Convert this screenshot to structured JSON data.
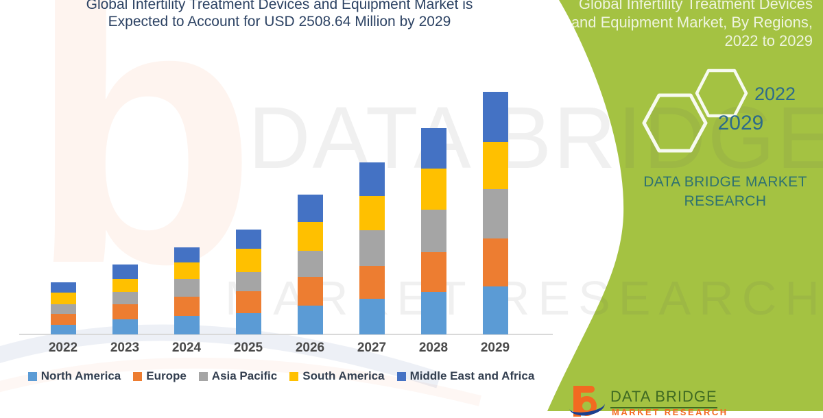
{
  "title": {
    "line1": "Global Infertility Treatment Devices and Equipment Market is",
    "line2": "Expected to Account for USD 2508.64 Million by 2029"
  },
  "side_panel": {
    "heading_lines": [
      "Global Infertility Treatment Devices",
      "and Equipment Market, By Regions,",
      "2022 to 2029"
    ],
    "hexagons": [
      {
        "label": "2022"
      },
      {
        "label": "2029"
      }
    ],
    "brand": {
      "line1": "DATA BRIDGE MARKET",
      "line2": "RESEARCH"
    }
  },
  "watermark": {
    "line1": "DATA BRIDGE",
    "line2": "MARKET RESEARCH",
    "brand_letter": "b"
  },
  "footer_logo": {
    "name": "DATA BRIDGE",
    "subtext": "MARKET RESEARCH"
  },
  "colors": {
    "panel_green": "#a4c242",
    "title_navy": "#2c4263",
    "heading_text": "#eef4de",
    "hex_text": "#2d6b8a",
    "brand_teal": "#2e7170",
    "axis_line": "#d9d9d9",
    "xlabel_gray": "#4a4a4a",
    "legend_text": "#333f50",
    "logo_orange": "#f26a21",
    "logo_blue": "#1b3f8f",
    "logo_green": "#3f6a22",
    "hexagon_border": "#f7faf0"
  },
  "chart_data": {
    "type": "bar",
    "stacked": true,
    "title": "Global Infertility Treatment Devices and Equipment Market is Expected to Account for USD 2508.64 Million by 2029",
    "xlabel": "",
    "ylabel": "",
    "unit": "USD Million",
    "axis_values_hidden": true,
    "values_estimated_from_bar_heights": true,
    "total_2029": 2508.64,
    "ylim": [
      0,
      2600
    ],
    "legend_position": "bottom",
    "grid": false,
    "categories": [
      "2022",
      "2023",
      "2024",
      "2025",
      "2026",
      "2027",
      "2028",
      "2029"
    ],
    "series": [
      {
        "name": "North America",
        "color": "#5B9BD5",
        "values": [
          99.2,
          155.9,
          191.3,
          219.7,
          297.7,
          368.5,
          439.4,
          496.1
        ]
      },
      {
        "name": "Europe",
        "color": "#ED7D31",
        "values": [
          113.4,
          155.9,
          198.4,
          226.8,
          297.7,
          340.2,
          411.1,
          496.1
        ]
      },
      {
        "name": "Asia Pacific",
        "color": "#A5A5A5",
        "values": [
          99.2,
          127.6,
          184.3,
          198.4,
          269.3,
          368.5,
          439.4,
          510.3
        ]
      },
      {
        "name": "South America",
        "color": "#FFC000",
        "values": [
          120.5,
          134.7,
          170.1,
          241.0,
          297.7,
          354.4,
          425.2,
          489.0
        ]
      },
      {
        "name": "Middle East and Africa",
        "color": "#4472C4",
        "values": [
          106.3,
          148.8,
          155.9,
          198.4,
          283.5,
          347.3,
          418.2,
          517.1
        ]
      }
    ],
    "totals": [
      538.6,
      722.9,
      900.0,
      1084.3,
      1445.9,
      1778.9,
      2133.3,
      2508.64
    ]
  }
}
